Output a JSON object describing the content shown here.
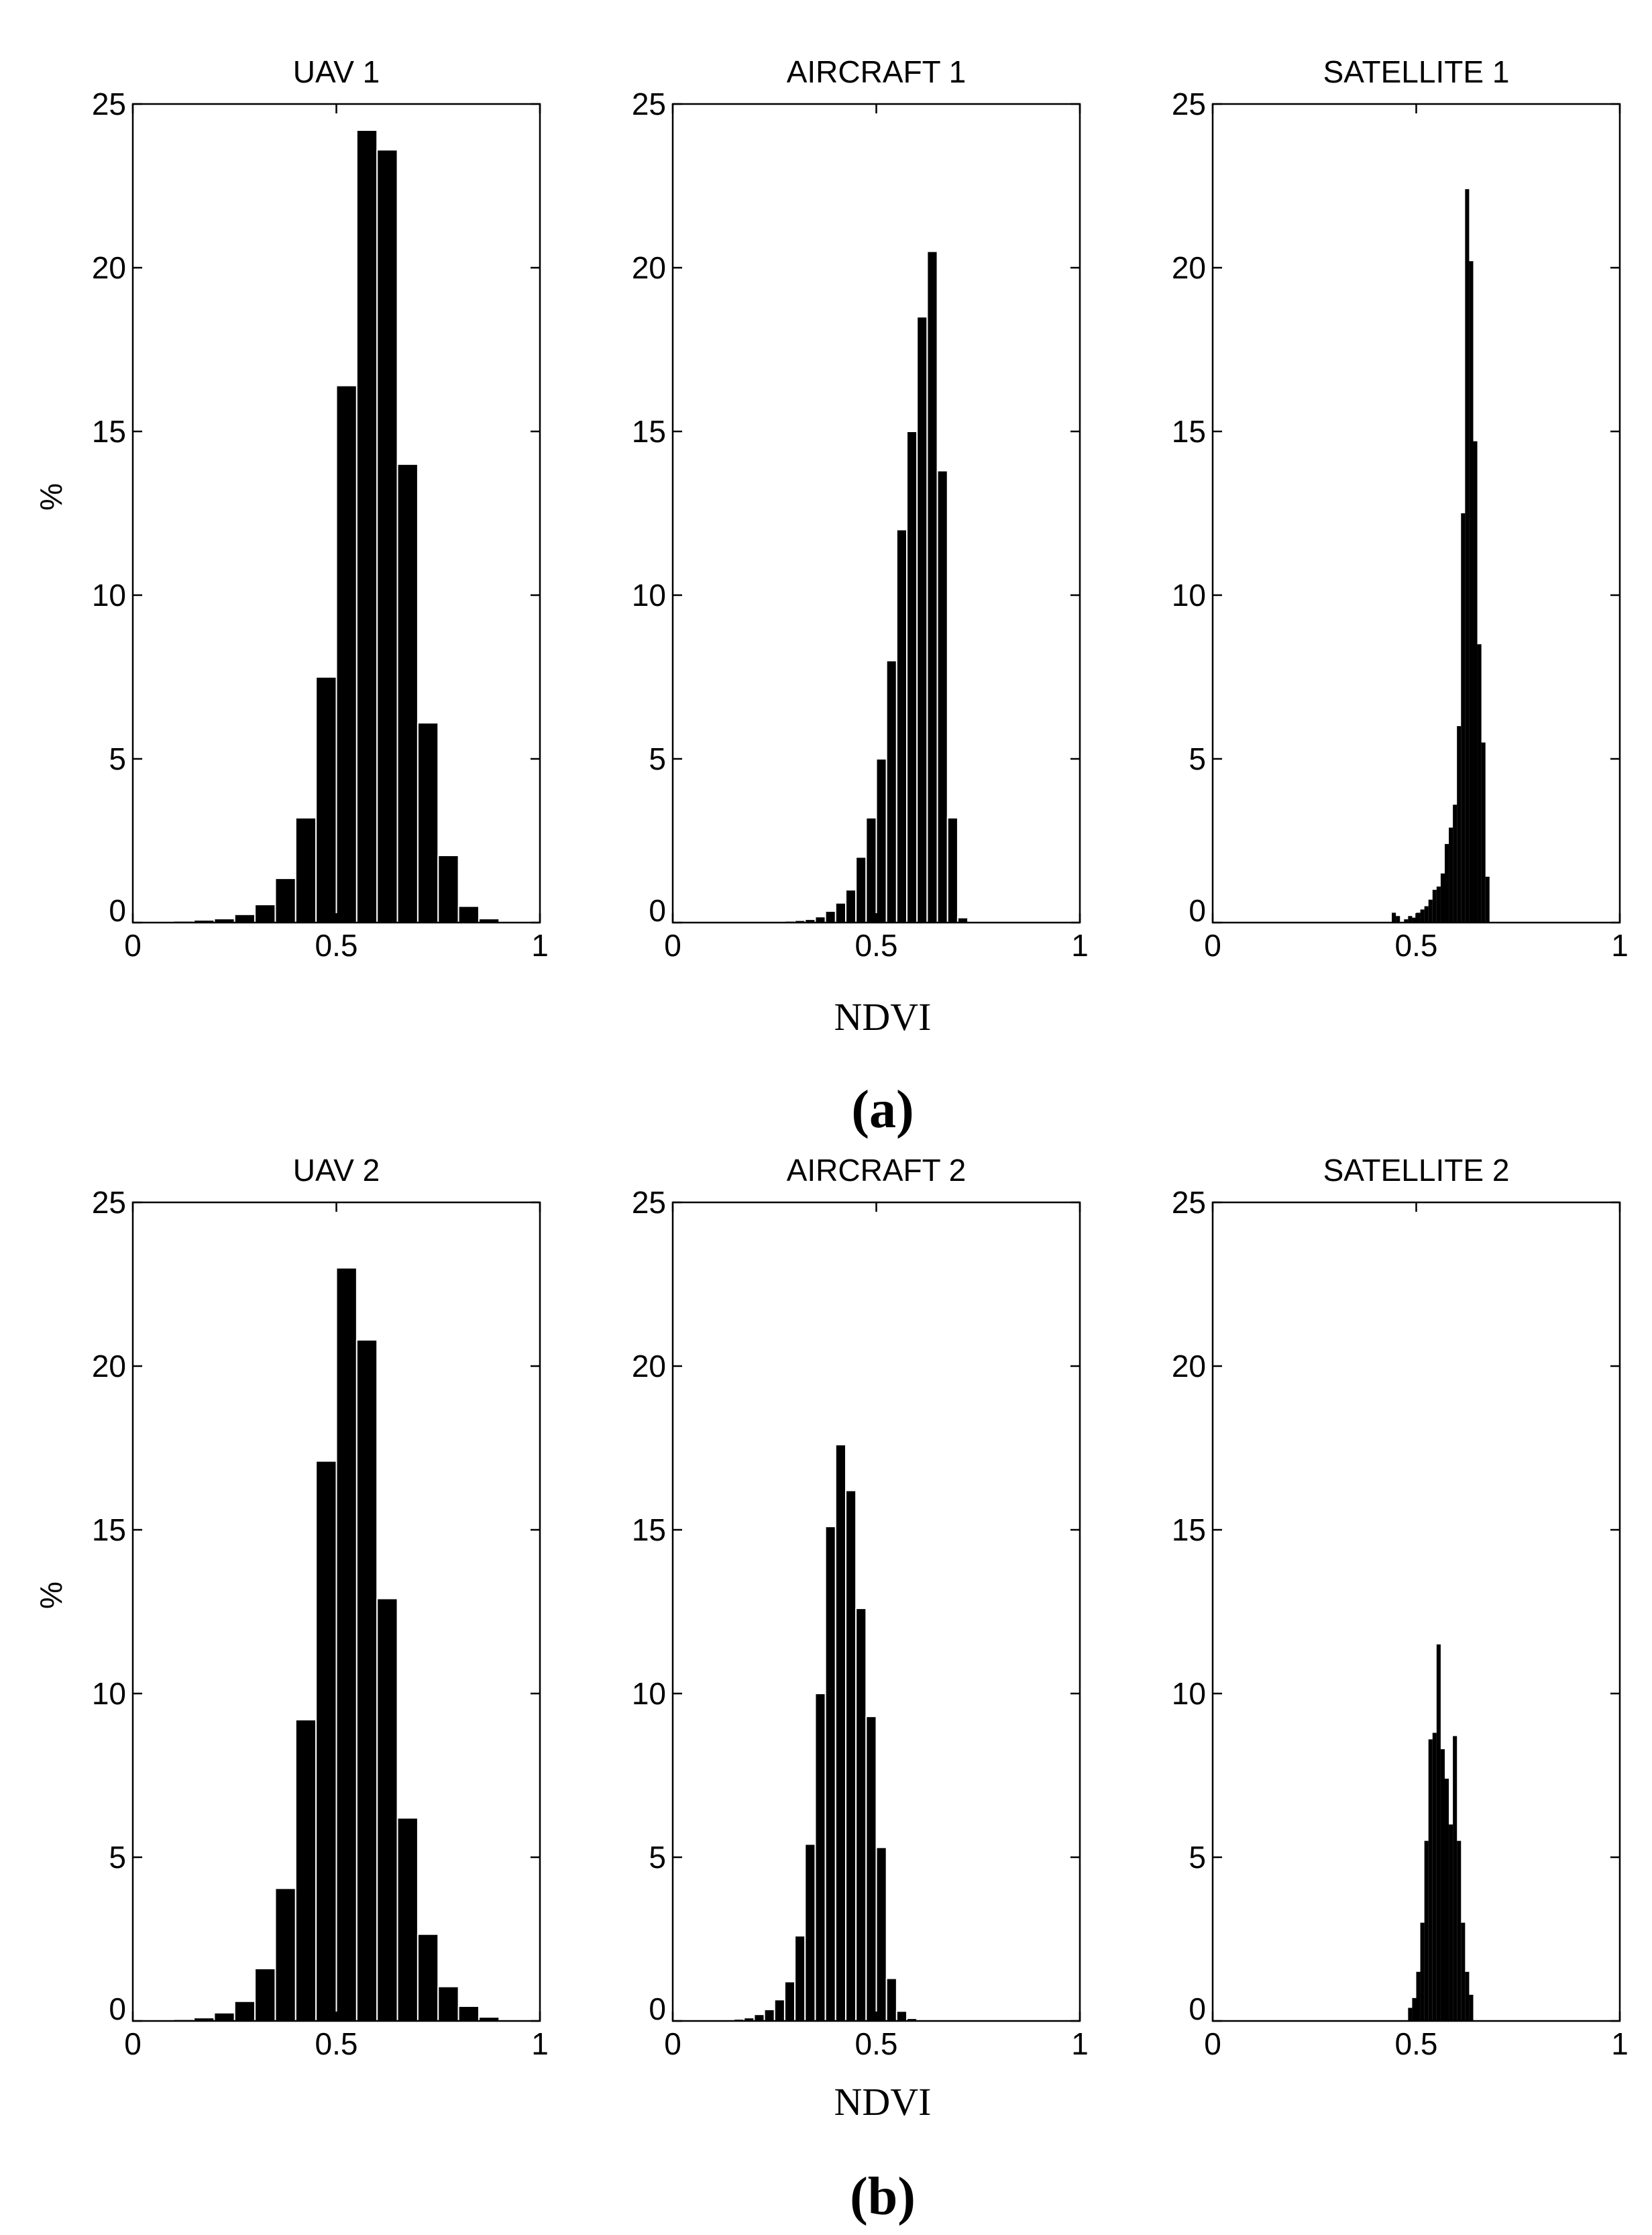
{
  "figure": {
    "panel_labels": [
      "(a)",
      "(b)"
    ],
    "xlabel": "NDVI",
    "ylabel": "%",
    "colors": {
      "bars": "#000000",
      "background": "#ffffff"
    }
  },
  "chart_data": [
    {
      "type": "bar",
      "panel": "a",
      "title": "UAV 1",
      "xlabel": "",
      "ylabel": "%",
      "xlim": [
        0,
        1
      ],
      "ylim": [
        0,
        25
      ],
      "xticks": [
        "0",
        "0.5",
        "1"
      ],
      "yticks": [
        "0",
        "5",
        "10",
        "15",
        "20",
        "25"
      ],
      "bin_width": 0.05,
      "x": [
        0.025,
        0.075,
        0.125,
        0.175,
        0.225,
        0.275,
        0.325,
        0.375,
        0.425,
        0.475,
        0.525,
        0.575,
        0.625,
        0.675,
        0.725,
        0.775,
        0.825,
        0.875,
        0.925,
        0.975
      ],
      "values": [
        0.02,
        0.03,
        0.05,
        0.08,
        0.12,
        0.25,
        0.55,
        1.35,
        3.2,
        7.5,
        16.4,
        24.2,
        23.6,
        14.0,
        6.1,
        2.05,
        0.5,
        0.12,
        0.04,
        0.02
      ]
    },
    {
      "type": "bar",
      "panel": "a",
      "title": "AIRCRAFT 1",
      "xlabel": "",
      "ylabel": "",
      "xlim": [
        0,
        1
      ],
      "ylim": [
        0,
        25
      ],
      "xticks": [
        "0",
        "0.5",
        "1"
      ],
      "yticks": [
        "0",
        "5",
        "10",
        "15",
        "20",
        "25"
      ],
      "bin_width": 0.025,
      "x": [
        0.1625,
        0.1875,
        0.2125,
        0.2375,
        0.2625,
        0.2875,
        0.3125,
        0.3375,
        0.3625,
        0.3875,
        0.4125,
        0.4375,
        0.4625,
        0.4875,
        0.5125,
        0.5375,
        0.5625,
        0.5875,
        0.6125,
        0.6375,
        0.6625,
        0.6875,
        0.7125
      ],
      "values": [
        0.02,
        0.02,
        0.03,
        0.03,
        0.04,
        0.05,
        0.07,
        0.1,
        0.18,
        0.35,
        0.6,
        1.0,
        2.0,
        3.2,
        5.0,
        8.0,
        12.0,
        15.0,
        18.5,
        20.5,
        13.8,
        3.2,
        0.15
      ]
    },
    {
      "type": "bar",
      "panel": "a",
      "title": "SATELLITE 1",
      "xlabel": "",
      "ylabel": "",
      "xlim": [
        0,
        1
      ],
      "ylim": [
        0,
        25
      ],
      "xticks": [
        "0",
        "0.5",
        "1"
      ],
      "yticks": [
        "0",
        "5",
        "10",
        "15",
        "20",
        "25"
      ],
      "bin_width": 0.01,
      "x": [
        0.445,
        0.455,
        0.475,
        0.485,
        0.495,
        0.505,
        0.515,
        0.525,
        0.535,
        0.545,
        0.555,
        0.565,
        0.575,
        0.585,
        0.595,
        0.605,
        0.615,
        0.625,
        0.635,
        0.645,
        0.655,
        0.665,
        0.675
      ],
      "values": [
        0.3,
        0.2,
        0.1,
        0.2,
        0.15,
        0.3,
        0.4,
        0.5,
        0.7,
        1.0,
        1.1,
        1.5,
        2.4,
        2.9,
        3.6,
        6.0,
        12.5,
        22.4,
        20.2,
        14.7,
        8.5,
        5.5,
        1.4
      ]
    },
    {
      "type": "bar",
      "panel": "b",
      "title": "UAV 2",
      "xlabel": "",
      "ylabel": "%",
      "xlim": [
        0,
        1
      ],
      "ylim": [
        0,
        25
      ],
      "xticks": [
        "0",
        "0.5",
        "1"
      ],
      "yticks": [
        "0",
        "5",
        "10",
        "15",
        "20",
        "25"
      ],
      "bin_width": 0.05,
      "x": [
        0.025,
        0.075,
        0.125,
        0.175,
        0.225,
        0.275,
        0.325,
        0.375,
        0.425,
        0.475,
        0.525,
        0.575,
        0.625,
        0.675,
        0.725,
        0.775,
        0.825,
        0.875,
        0.925,
        0.975
      ],
      "values": [
        0.02,
        0.03,
        0.05,
        0.1,
        0.25,
        0.6,
        1.6,
        4.05,
        9.2,
        17.1,
        23.0,
        20.8,
        12.9,
        6.2,
        2.65,
        1.05,
        0.45,
        0.12,
        0.04,
        0.02
      ]
    },
    {
      "type": "bar",
      "panel": "b",
      "title": "AIRCRAFT 2",
      "xlabel": "",
      "ylabel": "",
      "xlim": [
        0,
        1
      ],
      "ylim": [
        0,
        25
      ],
      "xticks": [
        "0",
        "0.5",
        "1"
      ],
      "yticks": [
        "0",
        "5",
        "10",
        "15",
        "20",
        "25"
      ],
      "bin_width": 0.025,
      "x": [
        0.0125,
        0.0375,
        0.0625,
        0.0875,
        0.1125,
        0.1375,
        0.1625,
        0.1875,
        0.2125,
        0.2375,
        0.2625,
        0.2875,
        0.3125,
        0.3375,
        0.3625,
        0.3875,
        0.4125,
        0.4375,
        0.4625,
        0.4875,
        0.5125,
        0.5375,
        0.5625,
        0.5875,
        0.6125,
        0.6375,
        0.6625,
        0.6875,
        0.7125
      ],
      "values": [
        0.02,
        0.02,
        0.02,
        0.03,
        0.03,
        0.04,
        0.06,
        0.1,
        0.2,
        0.35,
        0.65,
        1.2,
        2.6,
        5.4,
        10.0,
        15.1,
        17.6,
        16.2,
        12.6,
        9.3,
        5.3,
        1.3,
        0.3,
        0.08,
        0.04,
        0.02,
        0.02,
        0.02,
        0.02
      ]
    },
    {
      "type": "bar",
      "panel": "b",
      "title": "SATELLITE 2",
      "xlabel": "",
      "ylabel": "",
      "xlim": [
        0,
        1
      ],
      "ylim": [
        0,
        25
      ],
      "xticks": [
        "0",
        "0.5",
        "1"
      ],
      "yticks": [
        "0",
        "5",
        "10",
        "15",
        "20",
        "25"
      ],
      "bin_width": 0.01,
      "x": [
        0.485,
        0.495,
        0.505,
        0.515,
        0.525,
        0.535,
        0.545,
        0.555,
        0.565,
        0.575,
        0.585,
        0.595,
        0.605,
        0.615,
        0.625,
        0.635
      ],
      "values": [
        0.4,
        0.7,
        1.5,
        3.0,
        5.5,
        8.6,
        8.8,
        11.5,
        8.3,
        7.4,
        6.0,
        8.7,
        5.5,
        3.0,
        1.5,
        0.8
      ]
    }
  ]
}
